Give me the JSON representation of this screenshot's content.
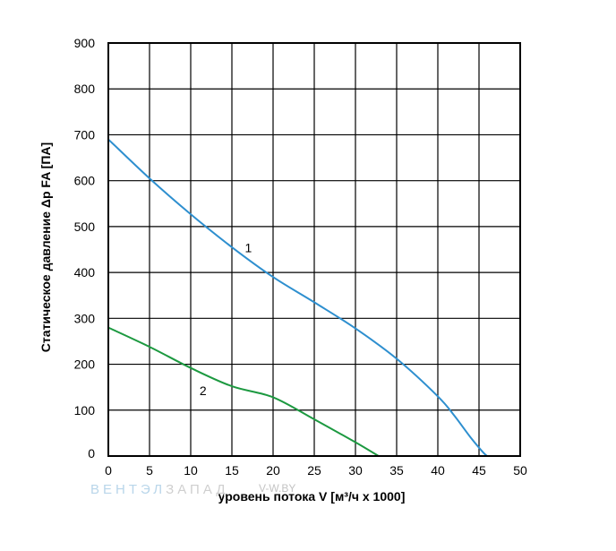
{
  "chart_data": {
    "type": "line",
    "xlabel": "уровень потока V [м³/ч x 1000]",
    "ylabel": "Статическое давление Δр FA [ПА]",
    "xlim": [
      0,
      50
    ],
    "ylim": [
      0,
      900
    ],
    "x_ticks": [
      0,
      5,
      10,
      15,
      20,
      25,
      30,
      35,
      40,
      45,
      50
    ],
    "y_ticks": [
      0,
      100,
      200,
      300,
      400,
      500,
      600,
      700,
      800,
      900
    ],
    "grid": true,
    "series": [
      {
        "name": "1",
        "color": "#2e8fcf",
        "points": [
          [
            0,
            690
          ],
          [
            5,
            605
          ],
          [
            10,
            527
          ],
          [
            15,
            455
          ],
          [
            20,
            390
          ],
          [
            25,
            335
          ],
          [
            30,
            278
          ],
          [
            35,
            212
          ],
          [
            40,
            130
          ],
          [
            42,
            88
          ],
          [
            44,
            40
          ],
          [
            45.5,
            8
          ],
          [
            46,
            0
          ]
        ]
      },
      {
        "name": "2",
        "color": "#1c9940",
        "points": [
          [
            0,
            280
          ],
          [
            5,
            238
          ],
          [
            10,
            192
          ],
          [
            15,
            152
          ],
          [
            20,
            128
          ],
          [
            25,
            80
          ],
          [
            30,
            30
          ],
          [
            32.8,
            0
          ]
        ]
      }
    ]
  },
  "watermark": {
    "brand_prefix": "ВЕНТЭЛ",
    "brand_suffix": "ЗАПАД",
    "site": "V-W.BY"
  }
}
